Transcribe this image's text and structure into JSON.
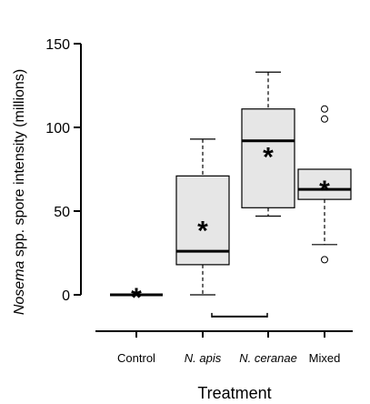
{
  "chart_data": {
    "type": "box",
    "xlabel": "Treatment",
    "ylabel_prefix": "Nosema",
    "ylabel_rest": " spp. spore intensity (millions)",
    "ylim": [
      0,
      150
    ],
    "yticks": [
      "0",
      "50",
      "100",
      "150"
    ],
    "ytick_values": [
      0,
      50,
      100,
      150
    ],
    "categories": [
      {
        "label": "Control",
        "italic": false
      },
      {
        "label": "N. apis",
        "italic": true
      },
      {
        "label": "N. ceranae",
        "italic": true
      },
      {
        "label": "Mixed",
        "italic": false
      }
    ],
    "boxes": [
      {
        "whisker_low": 0,
        "q1": 0,
        "median": 0,
        "q3": 0,
        "whisker_high": 0,
        "mean": 0,
        "outliers": []
      },
      {
        "whisker_low": 0,
        "q1": 18,
        "median": 26,
        "q3": 71,
        "whisker_high": 93,
        "mean": 40,
        "outliers": []
      },
      {
        "whisker_low": 47,
        "q1": 52,
        "median": 92,
        "q3": 111,
        "whisker_high": 133,
        "mean": 84,
        "outliers": []
      },
      {
        "whisker_low": 30,
        "q1": 57,
        "median": 63,
        "q3": 75,
        "whisker_high": 75,
        "mean": 64,
        "outliers": [
          21,
          105,
          111
        ]
      }
    ],
    "mean_marker": "*",
    "significance_bar": {
      "from_category": 1,
      "to_category": 2,
      "y": -13
    },
    "box_fill": "#e6e6e6",
    "grid": false,
    "legend": "none"
  }
}
